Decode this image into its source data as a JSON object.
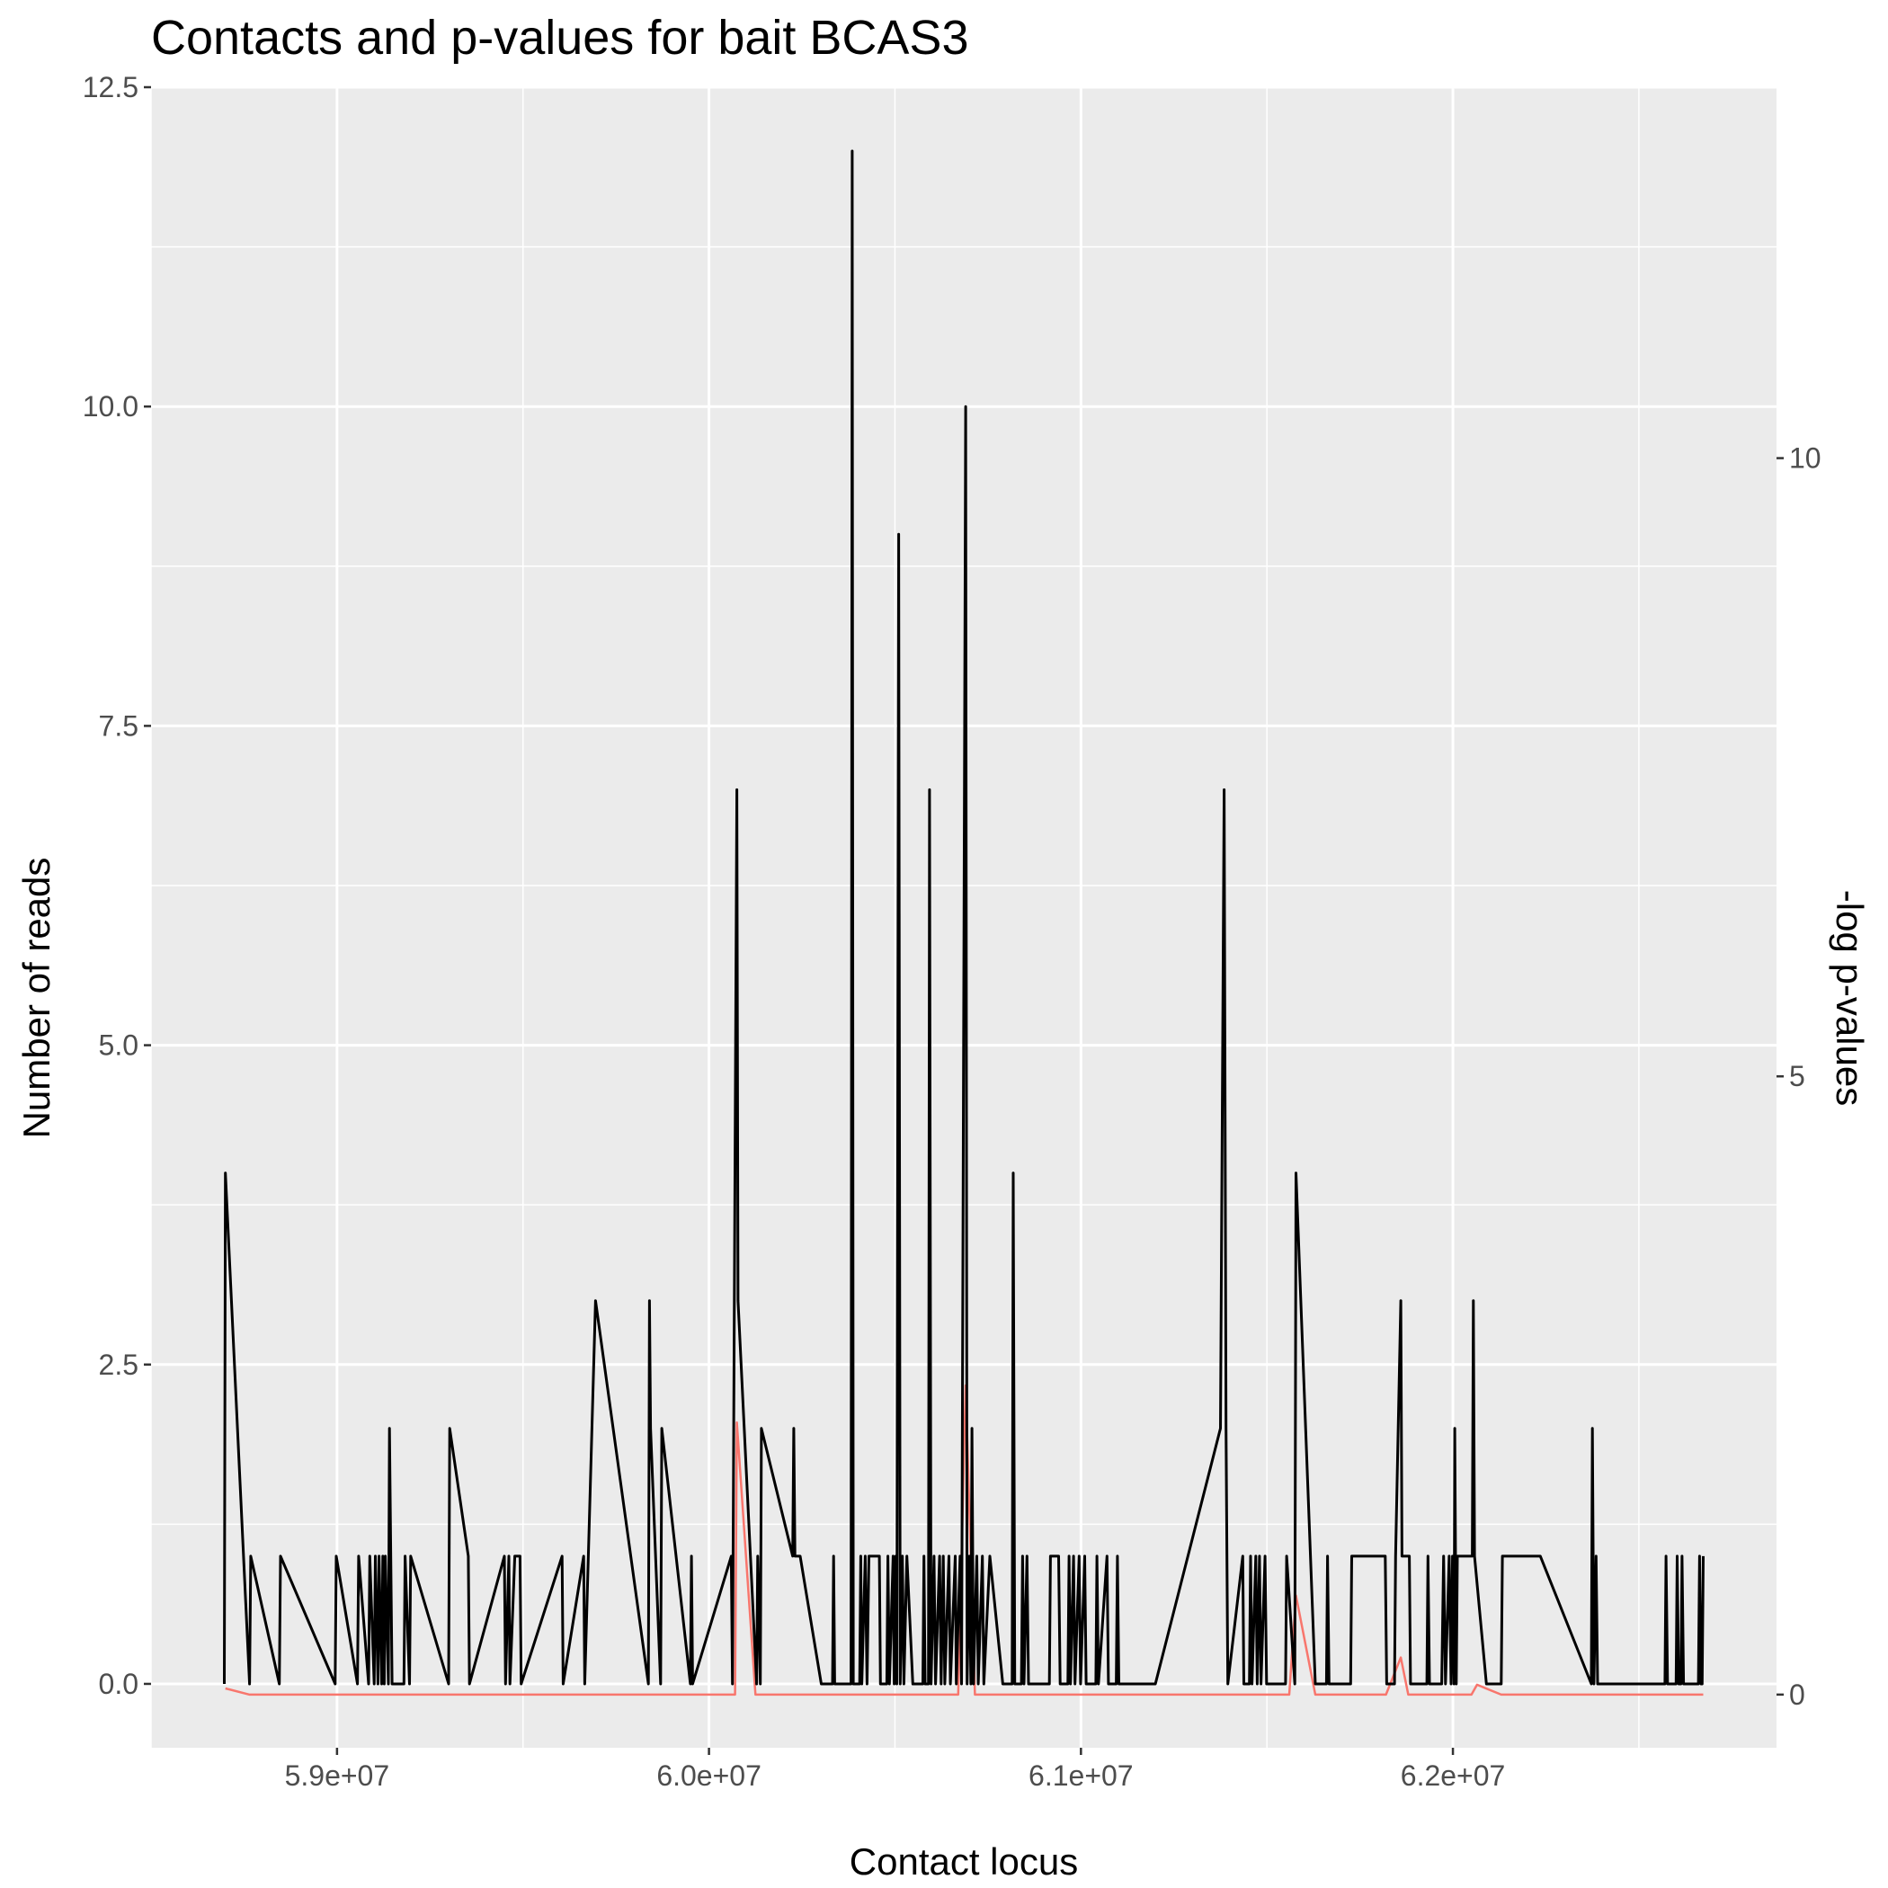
{
  "chart_data": {
    "type": "line",
    "title": "Contacts and p-values for bait BCAS3",
    "xlabel": "Contact locus",
    "ylabel": "Number of reads",
    "y2label": "-log p-values",
    "xlim": [
      58500000,
      62870000
    ],
    "ylim": [
      -0.5,
      12.5
    ],
    "y2lim": [
      -0.43,
      13.0
    ],
    "x_ticks": [
      59000000,
      60000000,
      61000000,
      62000000
    ],
    "x_tick_labels": [
      "5.9e+07",
      "6.0e+07",
      "6.1e+07",
      "6.2e+07"
    ],
    "y_ticks": [
      0,
      2.5,
      5,
      7.5,
      10,
      12.5
    ],
    "y_tick_labels": [
      "0.0",
      "2.5",
      "5.0",
      "7.5",
      "10.0",
      "12.5"
    ],
    "y2_ticks": [
      0,
      5,
      10
    ],
    "y2_tick_labels": [
      "0",
      "5",
      "10"
    ],
    "grid": true,
    "background": "#ebebeb",
    "series": [
      {
        "axis": "left",
        "color": "#000000",
        "points": [
          [
            58697000,
            0
          ],
          [
            58700000,
            4
          ],
          [
            58765000,
            0
          ],
          [
            58768000,
            1
          ],
          [
            58845000,
            0
          ],
          [
            58848000,
            1
          ],
          [
            58995000,
            0
          ],
          [
            58998000,
            1
          ],
          [
            59055000,
            0
          ],
          [
            59058000,
            1
          ],
          [
            59085000,
            0
          ],
          [
            59088000,
            1
          ],
          [
            59100000,
            0
          ],
          [
            59103000,
            1
          ],
          [
            59110000,
            0
          ],
          [
            59113000,
            1
          ],
          [
            59120000,
            0
          ],
          [
            59123000,
            1
          ],
          [
            59127000,
            0
          ],
          [
            59130000,
            1
          ],
          [
            59138000,
            0
          ],
          [
            59141000,
            2
          ],
          [
            59148000,
            0
          ],
          [
            59180000,
            0
          ],
          [
            59183000,
            1
          ],
          [
            59195000,
            0
          ],
          [
            59198000,
            1
          ],
          [
            59300000,
            0
          ],
          [
            59303000,
            2
          ],
          [
            59353000,
            1
          ],
          [
            59356000,
            0
          ],
          [
            59450000,
            1
          ],
          [
            59453000,
            0
          ],
          [
            59462000,
            1
          ],
          [
            59465000,
            0
          ],
          [
            59478000,
            1
          ],
          [
            59492000,
            1
          ],
          [
            59495000,
            0
          ],
          [
            59605000,
            1
          ],
          [
            59608000,
            0
          ],
          [
            59663000,
            1
          ],
          [
            59666000,
            0
          ],
          [
            59695000,
            3
          ],
          [
            59837000,
            0
          ],
          [
            59840000,
            3
          ],
          [
            59843000,
            2
          ],
          [
            59870000,
            0
          ],
          [
            59873000,
            2
          ],
          [
            59950000,
            0
          ],
          [
            59953000,
            1
          ],
          [
            59956000,
            0
          ],
          [
            60060000,
            1
          ],
          [
            60063000,
            0
          ],
          [
            60075000,
            7
          ],
          [
            60078000,
            3
          ],
          [
            60128000,
            0
          ],
          [
            60131000,
            1
          ],
          [
            60138000,
            0
          ],
          [
            60141000,
            2
          ],
          [
            60225000,
            1
          ],
          [
            60228000,
            2
          ],
          [
            60231000,
            1
          ],
          [
            60245000,
            1
          ],
          [
            60302000,
            0
          ],
          [
            60332000,
            0
          ],
          [
            60335000,
            1
          ],
          [
            60338000,
            0
          ],
          [
            60382000,
            0
          ],
          [
            60385000,
            12
          ],
          [
            60388000,
            0
          ],
          [
            60405000,
            0
          ],
          [
            60408000,
            1
          ],
          [
            60411000,
            0
          ],
          [
            60420000,
            1
          ],
          [
            60425000,
            0
          ],
          [
            60430000,
            1
          ],
          [
            60458000,
            1
          ],
          [
            60461000,
            0
          ],
          [
            60478000,
            0
          ],
          [
            60481000,
            1
          ],
          [
            60485000,
            0
          ],
          [
            60495000,
            1
          ],
          [
            60498000,
            0
          ],
          [
            60502000,
            1
          ],
          [
            60505000,
            0
          ],
          [
            60510000,
            9
          ],
          [
            60514000,
            0
          ],
          [
            60520000,
            1
          ],
          [
            60524000,
            0
          ],
          [
            60532000,
            1
          ],
          [
            60548000,
            0
          ],
          [
            60575000,
            0
          ],
          [
            60578000,
            1
          ],
          [
            60581000,
            0
          ],
          [
            60590000,
            0
          ],
          [
            60593000,
            7
          ],
          [
            60597000,
            0
          ],
          [
            60605000,
            1
          ],
          [
            60609000,
            0
          ],
          [
            60620000,
            1
          ],
          [
            60624000,
            0
          ],
          [
            60630000,
            1
          ],
          [
            60634000,
            0
          ],
          [
            60645000,
            1
          ],
          [
            60649000,
            0
          ],
          [
            60662000,
            1
          ],
          [
            60665000,
            0
          ],
          [
            60675000,
            1
          ],
          [
            60679000,
            0
          ],
          [
            60690000,
            10
          ],
          [
            60694000,
            0
          ],
          [
            60700000,
            1
          ],
          [
            60704000,
            0
          ],
          [
            60707000,
            2
          ],
          [
            60711000,
            0
          ],
          [
            60720000,
            1
          ],
          [
            60724000,
            0
          ],
          [
            60735000,
            1
          ],
          [
            60739000,
            0
          ],
          [
            60755000,
            1
          ],
          [
            60790000,
            0
          ],
          [
            60815000,
            0
          ],
          [
            60818000,
            4
          ],
          [
            60822000,
            0
          ],
          [
            60840000,
            0
          ],
          [
            60843000,
            1
          ],
          [
            60847000,
            0
          ],
          [
            60855000,
            1
          ],
          [
            60859000,
            0
          ],
          [
            60915000,
            0
          ],
          [
            60918000,
            1
          ],
          [
            60940000,
            1
          ],
          [
            60944000,
            0
          ],
          [
            60965000,
            0
          ],
          [
            60968000,
            1
          ],
          [
            60972000,
            0
          ],
          [
            60980000,
            1
          ],
          [
            60984000,
            0
          ],
          [
            60995000,
            1
          ],
          [
            60999000,
            0
          ],
          [
            61010000,
            1
          ],
          [
            61014000,
            0
          ],
          [
            61040000,
            0
          ],
          [
            61043000,
            1
          ],
          [
            61047000,
            0
          ],
          [
            61070000,
            1
          ],
          [
            61074000,
            0
          ],
          [
            61095000,
            0
          ],
          [
            61098000,
            1
          ],
          [
            61102000,
            0
          ],
          [
            61200000,
            0
          ],
          [
            61375000,
            2
          ],
          [
            61385000,
            7
          ],
          [
            61390000,
            2
          ],
          [
            61395000,
            0
          ],
          [
            61435000,
            1
          ],
          [
            61438000,
            0
          ],
          [
            61453000,
            0
          ],
          [
            61456000,
            1
          ],
          [
            61460000,
            0
          ],
          [
            61470000,
            1
          ],
          [
            61474000,
            0
          ],
          [
            61480000,
            1
          ],
          [
            61484000,
            0
          ],
          [
            61495000,
            1
          ],
          [
            61499000,
            0
          ],
          [
            61550000,
            0
          ],
          [
            61553000,
            1
          ],
          [
            61575000,
            0
          ],
          [
            61578000,
            4
          ],
          [
            61630000,
            0
          ],
          [
            61660000,
            0
          ],
          [
            61663000,
            1
          ],
          [
            61667000,
            0
          ],
          [
            61725000,
            0
          ],
          [
            61728000,
            1
          ],
          [
            61775000,
            1
          ],
          [
            61800000,
            1
          ],
          [
            61818000,
            1
          ],
          [
            61822000,
            0
          ],
          [
            61843000,
            0
          ],
          [
            61846000,
            1
          ],
          [
            61860000,
            3
          ],
          [
            61863000,
            1
          ],
          [
            61883000,
            1
          ],
          [
            61886000,
            0
          ],
          [
            61930000,
            0
          ],
          [
            61933000,
            1
          ],
          [
            61937000,
            0
          ],
          [
            61970000,
            0
          ],
          [
            61975000,
            1
          ],
          [
            61980000,
            0
          ],
          [
            61990000,
            1
          ],
          [
            61995000,
            0
          ],
          [
            61999000,
            1
          ],
          [
            62003000,
            0
          ],
          [
            62005000,
            2
          ],
          [
            62009000,
            0
          ],
          [
            62012000,
            1
          ],
          [
            62035000,
            1
          ],
          [
            62052000,
            1
          ],
          [
            62055000,
            3
          ],
          [
            62058000,
            1
          ],
          [
            62090000,
            0
          ],
          [
            62130000,
            0
          ],
          [
            62133000,
            1
          ],
          [
            62235000,
            1
          ],
          [
            62372000,
            0
          ],
          [
            62375000,
            2
          ],
          [
            62379000,
            0
          ],
          [
            62385000,
            1
          ],
          [
            62389000,
            0
          ],
          [
            62393000,
            0
          ],
          [
            62570000,
            0
          ],
          [
            62573000,
            1
          ],
          [
            62577000,
            0
          ],
          [
            62600000,
            0
          ],
          [
            62603000,
            1
          ],
          [
            62607000,
            0
          ],
          [
            62613000,
            0
          ],
          [
            62616000,
            1
          ],
          [
            62620000,
            0
          ],
          [
            62660000,
            0
          ],
          [
            62663000,
            1
          ],
          [
            62667000,
            0
          ],
          [
            62670000,
            0
          ],
          [
            62673000,
            1
          ]
        ]
      },
      {
        "axis": "right",
        "color": "#f8766d",
        "points": [
          [
            58700000,
            0.05
          ],
          [
            58765000,
            0.0
          ],
          [
            60070000,
            0.0
          ],
          [
            60075000,
            2.2
          ],
          [
            60125000,
            0.0
          ],
          [
            60670000,
            0.0
          ],
          [
            60690000,
            2.5
          ],
          [
            60715000,
            0.0
          ],
          [
            61560000,
            0.0
          ],
          [
            61578000,
            0.8
          ],
          [
            61630000,
            0.0
          ],
          [
            61820000,
            0.0
          ],
          [
            61860000,
            0.3
          ],
          [
            61880000,
            0.0
          ],
          [
            62050000,
            0.0
          ],
          [
            62065000,
            0.08
          ],
          [
            62130000,
            0.0
          ],
          [
            62673000,
            0.0
          ]
        ]
      }
    ]
  }
}
